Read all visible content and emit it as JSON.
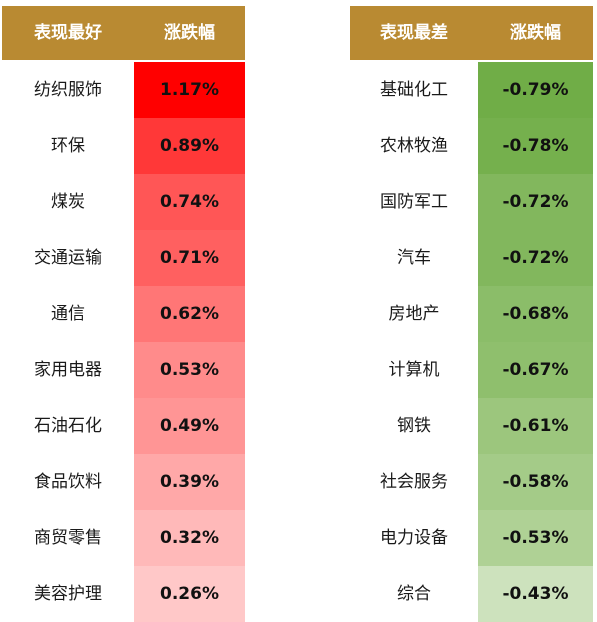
{
  "headers": {
    "best_label": "表现最好",
    "best_change": "涨跌幅",
    "worst_label": "表现最差",
    "worst_change": "涨跌幅"
  },
  "colors": {
    "header_bg": "#b98a32",
    "header_text": "#ffffff",
    "best_scale": [
      "#ff0000",
      "#ff3838",
      "#ff5656",
      "#ff6060",
      "#ff7676",
      "#ff8b8b",
      "#ff9595",
      "#ffa8a8",
      "#ffb9b9",
      "#ffc8c8"
    ],
    "worst_scale": [
      "#70ad47",
      "#75b04d",
      "#82b75d",
      "#82b75d",
      "#8bbd69",
      "#8fbf6d",
      "#9cc67d",
      "#a4cb88",
      "#afd195",
      "#cde2bd"
    ]
  },
  "chart_data": {
    "type": "table",
    "best": [
      {
        "sector": "纺织服饰",
        "change": 1.17,
        "change_label": "1.17%"
      },
      {
        "sector": "环保",
        "change": 0.89,
        "change_label": "0.89%"
      },
      {
        "sector": "煤炭",
        "change": 0.74,
        "change_label": "0.74%"
      },
      {
        "sector": "交通运输",
        "change": 0.71,
        "change_label": "0.71%"
      },
      {
        "sector": "通信",
        "change": 0.62,
        "change_label": "0.62%"
      },
      {
        "sector": "家用电器",
        "change": 0.53,
        "change_label": "0.53%"
      },
      {
        "sector": "石油石化",
        "change": 0.49,
        "change_label": "0.49%"
      },
      {
        "sector": "食品饮料",
        "change": 0.39,
        "change_label": "0.39%"
      },
      {
        "sector": "商贸零售",
        "change": 0.32,
        "change_label": "0.32%"
      },
      {
        "sector": "美容护理",
        "change": 0.26,
        "change_label": "0.26%"
      }
    ],
    "worst": [
      {
        "sector": "基础化工",
        "change": -0.79,
        "change_label": "-0.79%"
      },
      {
        "sector": "农林牧渔",
        "change": -0.78,
        "change_label": "-0.78%"
      },
      {
        "sector": "国防军工",
        "change": -0.72,
        "change_label": "-0.72%"
      },
      {
        "sector": "汽车",
        "change": -0.72,
        "change_label": "-0.72%"
      },
      {
        "sector": "房地产",
        "change": -0.68,
        "change_label": "-0.68%"
      },
      {
        "sector": "计算机",
        "change": -0.67,
        "change_label": "-0.67%"
      },
      {
        "sector": "钢铁",
        "change": -0.61,
        "change_label": "-0.61%"
      },
      {
        "sector": "社会服务",
        "change": -0.58,
        "change_label": "-0.58%"
      },
      {
        "sector": "电力设备",
        "change": -0.53,
        "change_label": "-0.53%"
      },
      {
        "sector": "综合",
        "change": -0.43,
        "change_label": "-0.43%"
      }
    ]
  }
}
